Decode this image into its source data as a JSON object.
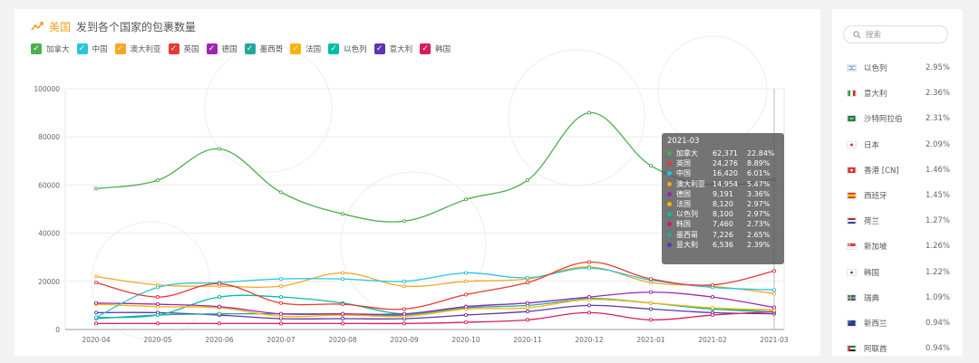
{
  "header": {
    "country": "美国",
    "title": "发到各个国家的包裹数量"
  },
  "legend": [
    {
      "name": "加拿大",
      "color": "#4caf50"
    },
    {
      "name": "中国",
      "color": "#26c6da"
    },
    {
      "name": "澳大利亚",
      "color": "#f5a623"
    },
    {
      "name": "英国",
      "color": "#e53935"
    },
    {
      "name": "德国",
      "color": "#9c27b0"
    },
    {
      "name": "墨西哥",
      "color": "#26a69a"
    },
    {
      "name": "法国",
      "color": "#ffb300"
    },
    {
      "name": "以色列",
      "color": "#00bfa5"
    },
    {
      "name": "意大利",
      "color": "#5e35b1"
    },
    {
      "name": "韩国",
      "color": "#d81b60"
    }
  ],
  "chart_data": {
    "type": "line",
    "categories": [
      "2020-04",
      "2020-05",
      "2020-06",
      "2020-07",
      "2020-08",
      "2020-09",
      "2020-10",
      "2020-11",
      "2020-12",
      "2021-01",
      "2021-02",
      "2021-03"
    ],
    "ylim": [
      0,
      100000
    ],
    "yticks": [
      0,
      20000,
      40000,
      60000,
      80000,
      100000
    ],
    "series": [
      {
        "name": "加拿大",
        "values": [
          58500,
          62000,
          75000,
          57000,
          48000,
          45000,
          54000,
          62000,
          90000,
          68000,
          60000,
          62371
        ]
      },
      {
        "name": "英国",
        "values": [
          19500,
          13500,
          19000,
          11000,
          10500,
          8500,
          14500,
          19500,
          28000,
          21000,
          18500,
          24276
        ]
      },
      {
        "name": "中国",
        "values": [
          5000,
          17500,
          19500,
          21000,
          21000,
          20000,
          23500,
          21500,
          25500,
          20500,
          17500,
          16420
        ]
      },
      {
        "name": "澳大利亚",
        "values": [
          22000,
          18500,
          18000,
          18000,
          23500,
          18000,
          20000,
          21000,
          26000,
          19500,
          18000,
          14954
        ]
      },
      {
        "name": "德国",
        "values": [
          11000,
          10500,
          9500,
          6500,
          6500,
          6500,
          9500,
          11000,
          13500,
          15500,
          13500,
          9191
        ]
      },
      {
        "name": "法国",
        "values": [
          10500,
          9500,
          9000,
          5500,
          6000,
          5500,
          8500,
          9000,
          12500,
          11000,
          9000,
          8120
        ]
      },
      {
        "name": "以色列",
        "values": [
          5000,
          6000,
          13500,
          13500,
          11000,
          6500,
          9500,
          11000,
          13000,
          11000,
          8500,
          8100
        ]
      },
      {
        "name": "韩国",
        "values": [
          2500,
          2500,
          2500,
          2500,
          2500,
          2500,
          3000,
          4000,
          7000,
          4000,
          6000,
          7460
        ]
      },
      {
        "name": "墨西哥",
        "values": [
          4500,
          6000,
          6500,
          6500,
          6500,
          6000,
          9000,
          10000,
          12500,
          11000,
          8500,
          7226
        ]
      },
      {
        "name": "意大利",
        "values": [
          7000,
          7000,
          6000,
          4500,
          4500,
          4500,
          6000,
          7500,
          10000,
          8500,
          7000,
          6536
        ]
      }
    ]
  },
  "tooltip": {
    "title": "2021-03",
    "rows": [
      {
        "name": "加拿大",
        "value": "62,371",
        "pct": "22.84%",
        "color": "#4caf50"
      },
      {
        "name": "英国",
        "value": "24,276",
        "pct": "8.89%",
        "color": "#e53935"
      },
      {
        "name": "中国",
        "value": "16,420",
        "pct": "6.01%",
        "color": "#26c6da"
      },
      {
        "name": "澳大利亚",
        "value": "14,954",
        "pct": "5.47%",
        "color": "#f5a623"
      },
      {
        "name": "德国",
        "value": "9,191",
        "pct": "3.36%",
        "color": "#9c27b0"
      },
      {
        "name": "法国",
        "value": "8,120",
        "pct": "2.97%",
        "color": "#ffb300"
      },
      {
        "name": "以色列",
        "value": "8,100",
        "pct": "2.97%",
        "color": "#00bfa5"
      },
      {
        "name": "韩国",
        "value": "7,460",
        "pct": "2.73%",
        "color": "#d81b60"
      },
      {
        "name": "墨西哥",
        "value": "7,226",
        "pct": "2.65%",
        "color": "#26a69a"
      },
      {
        "name": "意大利",
        "value": "6,536",
        "pct": "2.39%",
        "color": "#5e35b1"
      }
    ]
  },
  "search": {
    "placeholder": "搜索"
  },
  "ranking": [
    {
      "name": "以色列",
      "pct": "2.95%",
      "flag": "israel"
    },
    {
      "name": "意大利",
      "pct": "2.36%",
      "flag": "italy"
    },
    {
      "name": "沙特阿拉伯",
      "pct": "2.31%",
      "flag": "saudi-arabia"
    },
    {
      "name": "日本",
      "pct": "2.09%",
      "flag": "japan"
    },
    {
      "name": "香港 [CN]",
      "pct": "1.46%",
      "flag": "hong-kong"
    },
    {
      "name": "西班牙",
      "pct": "1.45%",
      "flag": "spain"
    },
    {
      "name": "荷兰",
      "pct": "1.27%",
      "flag": "netherlands"
    },
    {
      "name": "新加坡",
      "pct": "1.26%",
      "flag": "singapore"
    },
    {
      "name": "韩国",
      "pct": "1.22%",
      "flag": "korea"
    },
    {
      "name": "瑞典",
      "pct": "1.09%",
      "flag": "sweden"
    },
    {
      "name": "新西兰",
      "pct": "0.94%",
      "flag": "new-zealand"
    },
    {
      "name": "阿联酋",
      "pct": "0.94%",
      "flag": "uae"
    }
  ]
}
